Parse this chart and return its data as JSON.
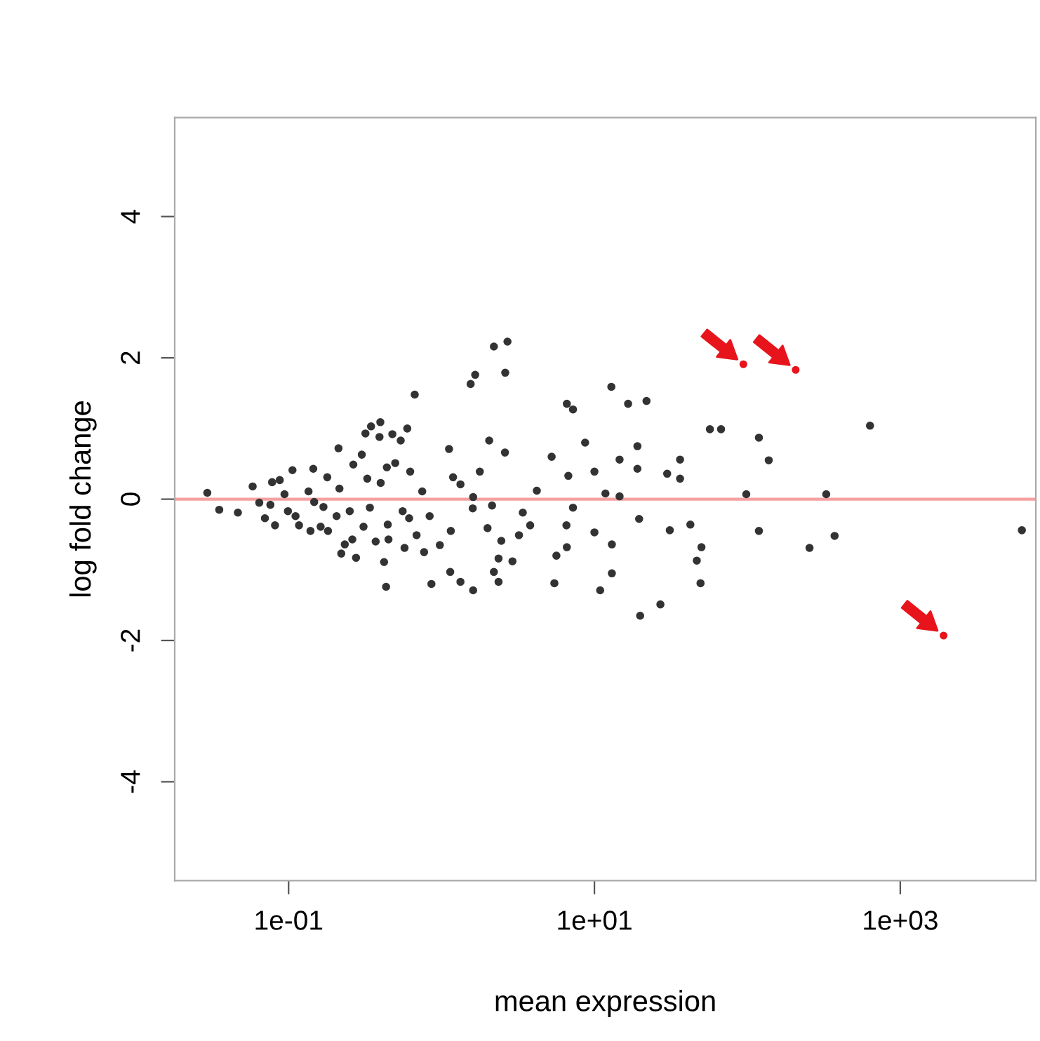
{
  "chart_data": {
    "type": "scatter",
    "xlabel": "mean expression",
    "ylabel": "log fold change",
    "log": "x",
    "xlim": [
      0.018,
      7700
    ],
    "ylim": [
      -5.4,
      5.4
    ],
    "xticks": [
      {
        "value": 0.1,
        "label": "1e-01"
      },
      {
        "value": 10,
        "label": "1e+01"
      },
      {
        "value": 1000,
        "label": "1e+03"
      }
    ],
    "yticks": [
      -4,
      -2,
      0,
      2,
      4
    ],
    "grid": false,
    "marker": "circle",
    "ref_lines": [
      {
        "axis": "y",
        "value": 0,
        "color": "#f4a0a0"
      }
    ],
    "series": [
      {
        "color": "#333333",
        "x": [
          0.0294,
          0.0352,
          0.0466,
          0.0582,
          0.0643,
          0.07,
          0.076,
          0.078,
          0.0815,
          0.0875,
          0.094,
          0.099,
          0.106,
          0.111,
          0.117,
          0.135,
          0.139,
          0.145,
          0.147,
          0.162,
          0.179,
          0.169,
          0.181,
          0.206,
          0.212,
          0.215,
          0.221,
          0.233,
          0.261,
          0.251,
          0.265,
          0.276,
          0.301,
          0.309,
          0.318,
          0.327,
          0.346,
          0.34,
          0.371,
          0.398,
          0.393,
          0.4,
          0.421,
          0.434,
          0.445,
          0.45,
          0.439,
          0.477,
          0.498,
          0.541,
          0.557,
          0.573,
          0.597,
          0.614,
          0.624,
          0.668,
          0.687,
          0.748,
          0.769,
          0.836,
          0.859,
          0.975,
          1.12,
          1.15,
          1.14,
          2.2,
          2.7,
          1.55,
          1.66,
          2.61,
          2.05,
          2.6,
          1.78,
          1.19,
          1.33,
          1.61,
          1.6,
          2.14,
          2.0,
          2.46,
          2.36,
          2.91,
          2.2,
          2.36,
          1.61,
          1.33,
          3.4,
          3.21,
          3.8,
          4.2,
          5.25,
          5.64,
          5.47,
          6.75,
          6.56,
          6.6,
          7.24,
          6.6,
          7.24,
          8.69,
          10,
          10,
          10.9,
          11.8,
          12.9,
          13,
          13,
          14.6,
          14.6,
          16.6,
          19.1,
          19.1,
          19.6,
          21.9,
          19.9,
          27.0,
          29.9,
          31.1,
          36.3,
          36.3,
          42.4,
          50.1,
          46.7,
          49.4,
          56.9,
          67.3,
          119,
          138,
          98.4,
          328,
          634,
          119,
          255,
          372,
          6240
        ],
        "values": [
          0.09,
          -0.15,
          -0.19,
          0.18,
          -0.05,
          -0.27,
          -0.08,
          0.24,
          -0.37,
          0.27,
          0.07,
          -0.17,
          0.41,
          -0.24,
          -0.37,
          0.11,
          -0.45,
          0.43,
          -0.04,
          -0.39,
          0.31,
          -0.11,
          -0.45,
          -0.24,
          0.72,
          0.15,
          -0.77,
          -0.64,
          -0.57,
          -0.17,
          0.49,
          -0.83,
          0.63,
          -0.39,
          0.93,
          0.29,
          1.03,
          -0.12,
          -0.6,
          1.09,
          0.88,
          0.23,
          -0.89,
          -1.24,
          -0.36,
          -0.57,
          0.45,
          0.92,
          0.51,
          0.83,
          -0.17,
          -0.69,
          1.0,
          -0.27,
          0.39,
          1.48,
          -0.51,
          0.11,
          -0.75,
          -0.24,
          -1.2,
          -0.65,
          0.71,
          -0.45,
          -1.03,
          2.16,
          2.23,
          1.63,
          1.76,
          1.79,
          0.83,
          0.66,
          0.39,
          0.31,
          0.21,
          0.03,
          -0.13,
          -0.09,
          -0.41,
          -0.59,
          -0.84,
          -0.88,
          -1.03,
          -1.17,
          -1.29,
          -1.17,
          -0.19,
          -0.51,
          -0.37,
          0.12,
          0.6,
          -0.8,
          -1.19,
          0.33,
          -0.37,
          -0.68,
          -0.12,
          1.35,
          1.27,
          0.8,
          0.39,
          -0.47,
          -1.29,
          0.08,
          1.59,
          -0.64,
          -1.05,
          0.56,
          0.04,
          1.35,
          0.75,
          0.43,
          -0.28,
          1.39,
          -1.65,
          -1.49,
          0.36,
          -0.44,
          0.56,
          0.29,
          -0.36,
          -0.68,
          -0.87,
          -1.19,
          0.99,
          0.99,
          0.87,
          0.55,
          0.07,
          0.07,
          1.04,
          -0.45,
          -0.69,
          -0.52,
          -0.44
        ]
      },
      {
        "color": "#e8141c",
        "x": [
          94.2,
          207,
          1920
        ],
        "values": [
          1.91,
          1.83,
          -1.93
        ]
      }
    ]
  }
}
